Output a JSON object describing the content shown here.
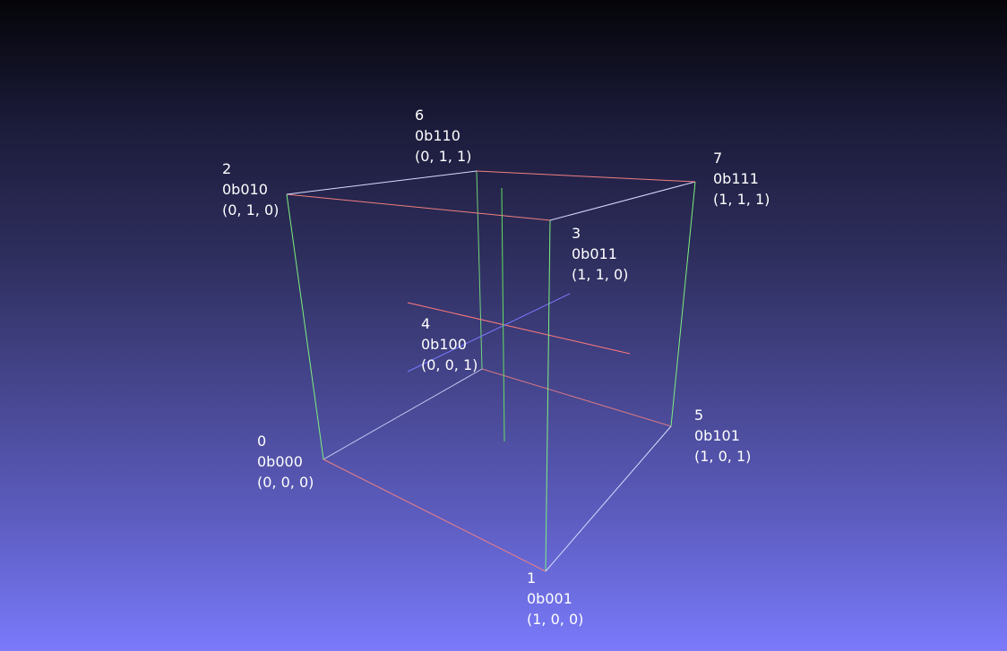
{
  "scene": {
    "background_top": "#050509",
    "background_bottom": "#7a7afb",
    "edge_colors": {
      "x_direction": "#f08080",
      "y_direction": "#7ef07e",
      "z_direction": "#d8dcff"
    },
    "axis_colors": {
      "x_axis": "#ff7a7a",
      "y_axis": "#62e062",
      "z_axis": "#7a7aff"
    }
  },
  "vertices": [
    {
      "index": "0",
      "binary": "0b000",
      "coords": "(0, 0, 0)"
    },
    {
      "index": "1",
      "binary": "0b001",
      "coords": "(1, 0, 0)"
    },
    {
      "index": "2",
      "binary": "0b010",
      "coords": "(0, 1, 0)"
    },
    {
      "index": "3",
      "binary": "0b011",
      "coords": "(1, 1, 0)"
    },
    {
      "index": "4",
      "binary": "0b100",
      "coords": "(0, 0, 1)"
    },
    {
      "index": "5",
      "binary": "0b101",
      "coords": "(1, 0, 1)"
    },
    {
      "index": "6",
      "binary": "0b110",
      "coords": "(0, 1, 1)"
    },
    {
      "index": "7",
      "binary": "0b111",
      "coords": "(1, 1, 1)"
    }
  ]
}
